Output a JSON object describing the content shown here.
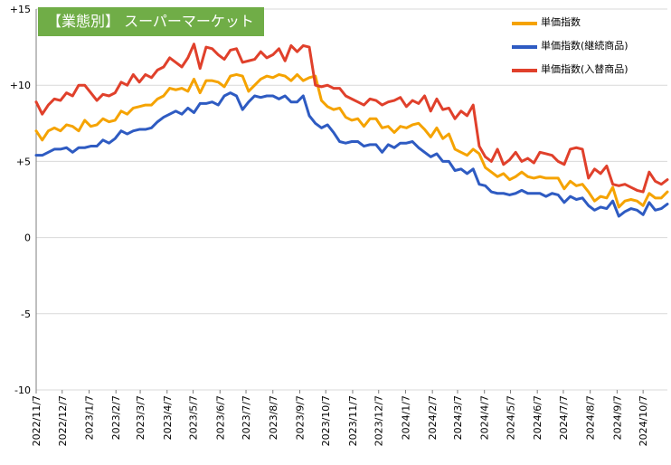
{
  "colors": {
    "title_bg": "#70ad47",
    "title_text": "#ffffff",
    "grid": "#d9d9d9",
    "axis": "#7f7f7f"
  },
  "chart_data": {
    "type": "line",
    "title": "【業態別】 スーパーマーケット",
    "ylim": [
      -10,
      15
    ],
    "yticks": [
      15,
      10,
      5,
      0,
      -5,
      -10
    ],
    "ytick_labels": [
      "+15",
      "+10",
      "+5",
      "0",
      "-5",
      "-10"
    ],
    "xtick_labels": [
      "2022/11/7",
      "2022/12/7",
      "2023/1/7",
      "2023/2/7",
      "2023/3/7",
      "2023/4/7",
      "2023/5/7",
      "2023/6/7",
      "2023/7/7",
      "2023/8/7",
      "2023/9/7",
      "2023/10/7",
      "2023/11/7",
      "2023/12/7",
      "2024/1/7",
      "2024/2/7",
      "2024/3/7",
      "2024/4/7",
      "2024/5/7",
      "2024/6/7",
      "2024/7/7",
      "2024/8/7",
      "2024/9/7",
      "2024/10/7"
    ],
    "x_start": "2022-11-07",
    "x_step_days": 7,
    "grid": "horizontal",
    "legend_position": "top-right",
    "series": [
      {
        "name": "単価指数",
        "color": "#f5a300",
        "values": [
          7.0,
          6.4,
          7.0,
          7.2,
          7.0,
          7.4,
          7.3,
          7.0,
          7.7,
          7.3,
          7.4,
          7.8,
          7.6,
          7.7,
          8.3,
          8.1,
          8.5,
          8.6,
          8.7,
          8.7,
          9.1,
          9.3,
          9.8,
          9.7,
          9.8,
          9.6,
          10.4,
          9.5,
          10.3,
          10.3,
          10.2,
          9.9,
          10.6,
          10.7,
          10.6,
          9.6,
          10.0,
          10.4,
          10.6,
          10.5,
          10.7,
          10.6,
          10.3,
          10.7,
          10.3,
          10.5,
          10.6,
          9.0,
          8.6,
          8.4,
          8.5,
          7.9,
          7.7,
          7.8,
          7.3,
          7.8,
          7.8,
          7.2,
          7.3,
          6.9,
          7.3,
          7.2,
          7.4,
          7.5,
          7.1,
          6.6,
          7.2,
          6.5,
          6.8,
          5.8,
          5.6,
          5.4,
          5.8,
          5.5,
          4.6,
          4.3,
          4.0,
          4.2,
          3.8,
          4.0,
          4.3,
          4.0,
          3.9,
          4.0,
          3.9,
          3.9,
          3.9,
          3.2,
          3.7,
          3.4,
          3.5,
          3.0,
          2.4,
          2.7,
          2.6,
          3.3,
          2.0,
          2.4,
          2.5,
          2.4,
          2.1,
          2.9,
          2.6,
          2.6,
          3.0
        ]
      },
      {
        "name": "単価指数(継続商品)",
        "color": "#2e5bc2",
        "values": [
          5.4,
          5.4,
          5.6,
          5.8,
          5.8,
          5.9,
          5.6,
          5.9,
          5.9,
          6.0,
          6.0,
          6.4,
          6.2,
          6.5,
          7.0,
          6.8,
          7.0,
          7.1,
          7.1,
          7.2,
          7.6,
          7.9,
          8.1,
          8.3,
          8.1,
          8.5,
          8.2,
          8.8,
          8.8,
          8.9,
          8.7,
          9.3,
          9.5,
          9.3,
          8.4,
          8.9,
          9.3,
          9.2,
          9.3,
          9.3,
          9.1,
          9.3,
          8.9,
          8.9,
          9.3,
          8.0,
          7.5,
          7.2,
          7.4,
          6.9,
          6.3,
          6.2,
          6.3,
          6.3,
          6.0,
          6.1,
          6.1,
          5.6,
          6.1,
          5.9,
          6.2,
          6.2,
          6.3,
          5.9,
          5.6,
          5.3,
          5.5,
          5.0,
          5.0,
          4.4,
          4.5,
          4.2,
          4.5,
          3.5,
          3.4,
          3.0,
          2.9,
          2.9,
          2.8,
          2.9,
          3.1,
          2.9,
          2.9,
          2.9,
          2.7,
          2.9,
          2.8,
          2.3,
          2.7,
          2.5,
          2.6,
          2.1,
          1.8,
          2.0,
          1.9,
          2.4,
          1.4,
          1.7,
          1.9,
          1.8,
          1.5,
          2.3,
          1.8,
          1.9,
          2.2
        ]
      },
      {
        "name": "単価指数(入替商品)",
        "color": "#e0402b",
        "values": [
          8.9,
          8.1,
          8.7,
          9.1,
          9.0,
          9.5,
          9.3,
          10.0,
          10.0,
          9.5,
          9.0,
          9.4,
          9.3,
          9.5,
          10.2,
          10.0,
          10.7,
          10.2,
          10.7,
          10.5,
          11.0,
          11.2,
          11.8,
          11.5,
          11.2,
          11.8,
          12.7,
          11.1,
          12.5,
          12.4,
          12.0,
          11.7,
          12.3,
          12.4,
          11.5,
          11.6,
          11.7,
          12.2,
          11.8,
          12.0,
          12.4,
          11.6,
          12.6,
          12.2,
          12.6,
          12.5,
          10.0,
          9.9,
          10.0,
          9.8,
          9.8,
          9.3,
          9.1,
          8.9,
          8.7,
          9.1,
          9.0,
          8.7,
          8.9,
          9.0,
          9.2,
          8.6,
          9.0,
          8.8,
          9.3,
          8.3,
          9.1,
          8.4,
          8.5,
          7.8,
          8.3,
          8.0,
          8.7,
          6.0,
          5.3,
          5.0,
          5.8,
          4.8,
          5.1,
          5.6,
          5.0,
          5.2,
          4.9,
          5.6,
          5.5,
          5.4,
          5.0,
          4.8,
          5.8,
          5.9,
          5.8,
          3.9,
          4.5,
          4.2,
          4.7,
          3.5,
          3.4,
          3.5,
          3.3,
          3.1,
          3.0,
          4.3,
          3.7,
          3.5,
          3.8
        ]
      }
    ]
  }
}
